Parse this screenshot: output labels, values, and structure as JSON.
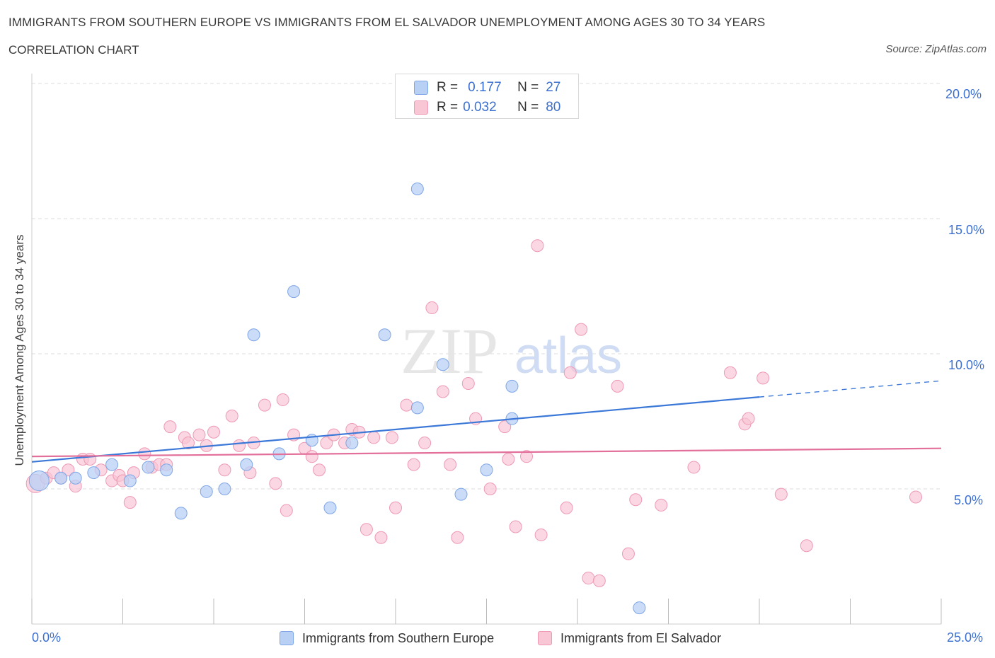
{
  "title": "IMMIGRANTS FROM SOUTHERN EUROPE VS IMMIGRANTS FROM EL SALVADOR UNEMPLOYMENT AMONG AGES 30 TO 34 YEARS",
  "subtitle": "CORRELATION CHART",
  "source": "Source: ZipAtlas.com",
  "watermark": {
    "zip": "ZIP",
    "atlas": "atlas"
  },
  "colors": {
    "blue_fill": "#b9d0f5",
    "blue_stroke": "#7fa6e6",
    "blue_line": "#3b78d8",
    "pink_fill": "#f8c6d5",
    "pink_stroke": "#ee9ab4",
    "pink_line": "#e2709a",
    "axis_text": "#3b6fd0",
    "grid": "#dddddd"
  },
  "legend": {
    "rows": [
      {
        "r_label": "R =",
        "r_value": "0.177",
        "n_label": "N =",
        "n_value": "27"
      },
      {
        "r_label": "R =",
        "r_value": "0.032",
        "n_label": "N =",
        "n_value": "80"
      }
    ]
  },
  "bottom_legend": {
    "series1": "Immigrants from Southern Europe",
    "series2": "Immigrants from El Salvador"
  },
  "x_axis": {
    "min_label": "0.0%",
    "max_label": "25.0%"
  },
  "y_axis": {
    "ticks": [
      "20.0%",
      "15.0%",
      "10.0%",
      "5.0%"
    ]
  },
  "chart_data": {
    "type": "scatter",
    "title": "IMMIGRANTS FROM SOUTHERN EUROPE VS IMMIGRANTS FROM EL SALVADOR UNEMPLOYMENT AMONG AGES 30 TO 34 YEARS",
    "xlabel": "",
    "ylabel": "Unemployment Among Ages 30 to 34 years",
    "xlim": [
      0,
      25
    ],
    "ylim": [
      0,
      20
    ],
    "y_ticks": [
      5,
      10,
      15,
      20
    ],
    "series": [
      {
        "name": "Immigrants from Southern Europe",
        "R": 0.177,
        "N": 27,
        "trend": {
          "x0": 0,
          "y0": 6.0,
          "x1": 20,
          "y1": 8.4,
          "dash_to_x": 25,
          "dash_to_y": 9.0
        },
        "points": [
          [
            0.2,
            5.3
          ],
          [
            0.8,
            5.4
          ],
          [
            1.2,
            5.4
          ],
          [
            1.7,
            5.6
          ],
          [
            2.2,
            5.9
          ],
          [
            2.7,
            5.3
          ],
          [
            3.2,
            5.8
          ],
          [
            3.7,
            5.7
          ],
          [
            4.1,
            4.1
          ],
          [
            4.8,
            4.9
          ],
          [
            5.3,
            5.0
          ],
          [
            5.9,
            5.9
          ],
          [
            6.1,
            10.7
          ],
          [
            6.8,
            6.3
          ],
          [
            7.2,
            12.3
          ],
          [
            7.7,
            6.8
          ],
          [
            8.2,
            4.3
          ],
          [
            8.8,
            6.7
          ],
          [
            9.7,
            10.7
          ],
          [
            10.6,
            8.0
          ],
          [
            10.6,
            16.1
          ],
          [
            11.3,
            9.6
          ],
          [
            11.8,
            4.8
          ],
          [
            12.5,
            5.7
          ],
          [
            13.2,
            8.8
          ],
          [
            13.2,
            7.6
          ],
          [
            16.7,
            0.6
          ]
        ]
      },
      {
        "name": "Immigrants from El Salvador",
        "R": 0.032,
        "N": 80,
        "trend": {
          "x0": 0,
          "y0": 6.2,
          "x1": 25,
          "y1": 6.5
        },
        "points": [
          [
            0.1,
            5.2
          ],
          [
            0.4,
            5.4
          ],
          [
            0.6,
            5.6
          ],
          [
            0.8,
            5.4
          ],
          [
            1.0,
            5.7
          ],
          [
            1.2,
            5.1
          ],
          [
            1.4,
            6.1
          ],
          [
            1.6,
            6.1
          ],
          [
            1.9,
            5.7
          ],
          [
            2.2,
            5.3
          ],
          [
            2.4,
            5.5
          ],
          [
            2.5,
            5.3
          ],
          [
            2.7,
            4.5
          ],
          [
            2.8,
            5.6
          ],
          [
            3.1,
            6.3
          ],
          [
            3.3,
            5.8
          ],
          [
            3.5,
            5.9
          ],
          [
            3.7,
            5.9
          ],
          [
            3.8,
            7.3
          ],
          [
            4.2,
            6.9
          ],
          [
            4.3,
            6.7
          ],
          [
            4.6,
            7.0
          ],
          [
            4.8,
            6.6
          ],
          [
            5.0,
            7.1
          ],
          [
            5.3,
            5.7
          ],
          [
            5.5,
            7.7
          ],
          [
            5.7,
            6.6
          ],
          [
            6.0,
            5.6
          ],
          [
            6.1,
            6.7
          ],
          [
            6.4,
            8.1
          ],
          [
            6.7,
            5.2
          ],
          [
            6.9,
            8.3
          ],
          [
            7.0,
            4.2
          ],
          [
            7.2,
            7.0
          ],
          [
            7.5,
            6.5
          ],
          [
            7.7,
            6.2
          ],
          [
            7.9,
            5.7
          ],
          [
            8.1,
            6.7
          ],
          [
            8.3,
            7.0
          ],
          [
            8.6,
            6.7
          ],
          [
            8.8,
            7.2
          ],
          [
            9.0,
            7.1
          ],
          [
            9.2,
            3.5
          ],
          [
            9.4,
            6.9
          ],
          [
            9.6,
            3.2
          ],
          [
            9.9,
            6.9
          ],
          [
            10.0,
            4.3
          ],
          [
            10.3,
            8.1
          ],
          [
            10.5,
            5.9
          ],
          [
            10.8,
            6.7
          ],
          [
            11.0,
            11.7
          ],
          [
            11.3,
            8.6
          ],
          [
            11.5,
            5.9
          ],
          [
            11.7,
            3.2
          ],
          [
            12.0,
            8.9
          ],
          [
            12.2,
            7.6
          ],
          [
            12.6,
            5.0
          ],
          [
            13.0,
            7.3
          ],
          [
            13.1,
            6.1
          ],
          [
            13.3,
            3.6
          ],
          [
            13.6,
            6.2
          ],
          [
            13.9,
            14.0
          ],
          [
            14.0,
            3.3
          ],
          [
            14.7,
            4.3
          ],
          [
            14.8,
            9.3
          ],
          [
            15.1,
            10.9
          ],
          [
            15.3,
            1.7
          ],
          [
            15.6,
            1.6
          ],
          [
            16.1,
            8.8
          ],
          [
            16.4,
            2.6
          ],
          [
            16.6,
            4.6
          ],
          [
            17.3,
            4.4
          ],
          [
            18.2,
            5.8
          ],
          [
            19.2,
            9.3
          ],
          [
            19.6,
            7.4
          ],
          [
            19.7,
            7.6
          ],
          [
            20.1,
            9.1
          ],
          [
            20.6,
            4.8
          ],
          [
            21.3,
            2.9
          ],
          [
            24.3,
            4.7
          ]
        ]
      }
    ]
  }
}
